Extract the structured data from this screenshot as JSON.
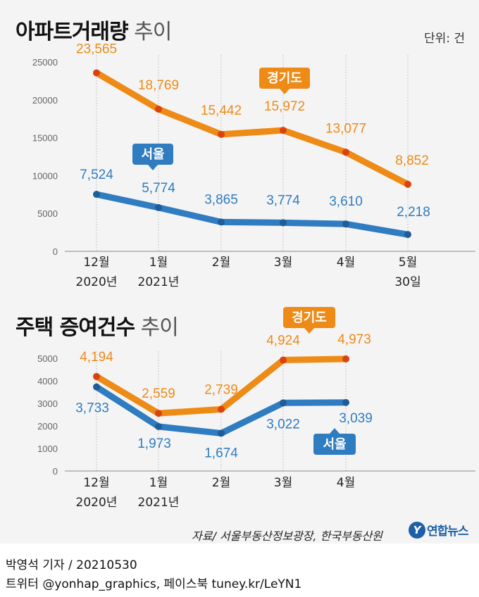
{
  "chart_data": [
    {
      "type": "line",
      "title": "아파트거래량",
      "title_suffix": "추이",
      "unit": "단위: 건",
      "categories": [
        [
          "12월",
          "2020년"
        ],
        [
          "1월",
          "2021년"
        ],
        [
          "2월",
          ""
        ],
        [
          "3월",
          ""
        ],
        [
          "4월",
          ""
        ],
        [
          "5월",
          "30일"
        ]
      ],
      "yticks": [
        0,
        5000,
        10000,
        15000,
        20000,
        25000
      ],
      "ylim": [
        0,
        25000
      ],
      "grid": "vertical",
      "series": [
        {
          "name": "경기도",
          "color": "#ee8a16",
          "values": [
            23565,
            18769,
            15442,
            15972,
            13077,
            8852
          ],
          "labels": [
            "23,565",
            "18,769",
            "15,442",
            "15,972",
            "13,077",
            "8,852"
          ]
        },
        {
          "name": "서울",
          "color": "#2f7cc0",
          "values": [
            7524,
            5774,
            3865,
            3774,
            3610,
            2218
          ],
          "labels": [
            "7,524",
            "5,774",
            "3,865",
            "3,774",
            "3,610",
            "2,218"
          ]
        }
      ]
    },
    {
      "type": "line",
      "title": "주택 증여건수",
      "title_suffix": "추이",
      "categories": [
        [
          "12월",
          "2020년"
        ],
        [
          "1월",
          "2021년"
        ],
        [
          "2월",
          ""
        ],
        [
          "3월",
          ""
        ],
        [
          "4월",
          ""
        ]
      ],
      "yticks": [
        0,
        1000,
        2000,
        3000,
        4000,
        5000
      ],
      "ylim": [
        0,
        5000
      ],
      "grid": "vertical",
      "series": [
        {
          "name": "경기도",
          "color": "#ee8a16",
          "values": [
            4194,
            2559,
            2739,
            4924,
            4973
          ],
          "labels": [
            "4,194",
            "2,559",
            "2,739",
            "4,924",
            "4,973"
          ]
        },
        {
          "name": "서울",
          "color": "#2f7cc0",
          "values": [
            3733,
            1973,
            1674,
            3022,
            3039
          ],
          "labels": [
            "3,733",
            "1,973",
            "1,674",
            "3,022",
            "3,039"
          ]
        }
      ]
    }
  ],
  "source": "자료/ 서울부동산정보광장, 한국부동산원",
  "logo": {
    "mark": "Y",
    "text": "연합뉴스"
  },
  "footer": {
    "line1": "박영석 기자 /  20210530",
    "line2": "트위터 @yonhap_graphics, 페이스북 tuney.kr/LeYN1"
  }
}
